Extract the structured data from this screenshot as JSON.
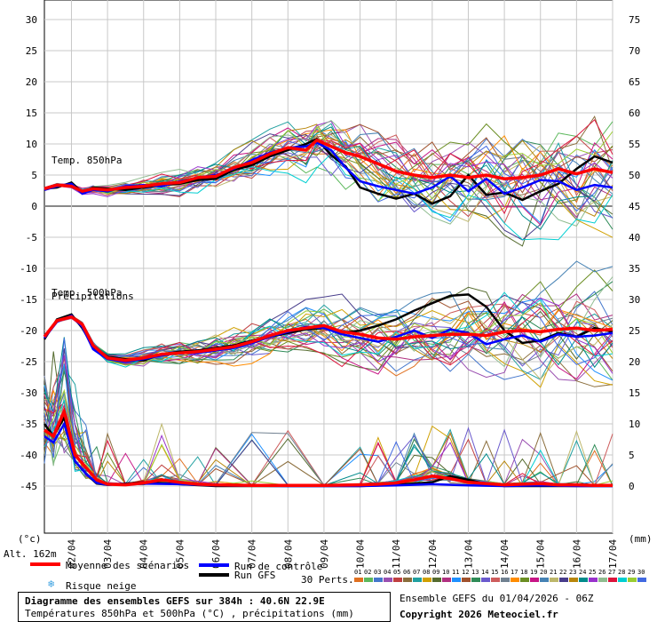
{
  "chart_data": {
    "type": "line",
    "left_axis": {
      "label": "(°c)",
      "ticks": [
        30,
        25,
        20,
        15,
        10,
        5,
        0,
        -5,
        -10,
        -15,
        -20,
        -25,
        -30,
        -35,
        -40,
        -45
      ],
      "range": [
        -45,
        30
      ]
    },
    "right_axis": {
      "label": "(mm)",
      "ticks": [
        75,
        70,
        65,
        60,
        55,
        50,
        45,
        40,
        35,
        30,
        25,
        20,
        15,
        10,
        5,
        0
      ],
      "range": [
        0,
        75
      ]
    },
    "x_ticks": [
      "02/04",
      "03/04",
      "04/04",
      "05/04",
      "06/04",
      "07/04",
      "08/04",
      "09/04",
      "10/04",
      "11/04",
      "12/04",
      "13/04",
      "14/04",
      "15/04",
      "16/04",
      "17/04"
    ],
    "x_range_days": [
      1.25,
      17.0
    ],
    "annotations": [
      "Temp. 850hPa",
      "Temp. 500hPa",
      "Précipitations"
    ],
    "series": [
      {
        "name": "Moyenne des scénarios",
        "color": "#ff0000",
        "t850": [
          [
            1.25,
            2.8
          ],
          [
            1.6,
            3.4
          ],
          [
            2.0,
            3.2
          ],
          [
            2.3,
            2.4
          ],
          [
            2.6,
            2.8
          ],
          [
            3,
            2.6
          ],
          [
            3.5,
            3.0
          ],
          [
            4,
            3.2
          ],
          [
            4.5,
            3.6
          ],
          [
            5,
            3.8
          ],
          [
            5.5,
            4.6
          ],
          [
            6,
            4.8
          ],
          [
            6.5,
            6.2
          ],
          [
            7,
            7.0
          ],
          [
            7.5,
            8.4
          ],
          [
            8,
            9.4
          ],
          [
            8.5,
            9.0
          ],
          [
            8.8,
            10.6
          ],
          [
            9.2,
            9.6
          ],
          [
            9.6,
            8.6
          ],
          [
            10,
            8.0
          ],
          [
            10.5,
            6.8
          ],
          [
            11,
            5.6
          ],
          [
            11.5,
            5.0
          ],
          [
            12,
            4.6
          ],
          [
            12.5,
            5.0
          ],
          [
            13,
            4.6
          ],
          [
            13.5,
            5.0
          ],
          [
            14,
            4.4
          ],
          [
            14.5,
            4.6
          ],
          [
            15,
            5.0
          ],
          [
            15.5,
            6.0
          ],
          [
            16,
            5.2
          ],
          [
            16.5,
            6.0
          ],
          [
            17,
            5.4
          ]
        ],
        "t500": [
          [
            1.25,
            -21.0
          ],
          [
            1.6,
            -18.4
          ],
          [
            2.0,
            -17.8
          ],
          [
            2.3,
            -19.0
          ],
          [
            2.6,
            -22.4
          ],
          [
            3,
            -24.4
          ],
          [
            3.5,
            -24.8
          ],
          [
            4,
            -24.4
          ],
          [
            4.5,
            -23.8
          ],
          [
            5,
            -23.6
          ],
          [
            5.5,
            -23.4
          ],
          [
            6,
            -23.0
          ],
          [
            6.5,
            -22.6
          ],
          [
            7,
            -21.8
          ],
          [
            7.5,
            -20.8
          ],
          [
            8,
            -20.0
          ],
          [
            8.5,
            -19.6
          ],
          [
            9,
            -19.2
          ],
          [
            9.5,
            -20.2
          ],
          [
            10,
            -20.6
          ],
          [
            10.5,
            -21.2
          ],
          [
            11,
            -21.4
          ],
          [
            11.5,
            -21.0
          ],
          [
            12,
            -20.8
          ],
          [
            12.5,
            -20.6
          ],
          [
            13,
            -20.6
          ],
          [
            13.5,
            -20.8
          ],
          [
            14,
            -20.2
          ],
          [
            14.5,
            -20.0
          ],
          [
            15,
            -20.2
          ],
          [
            15.5,
            -19.8
          ],
          [
            16,
            -19.6
          ],
          [
            16.5,
            -20.0
          ],
          [
            17,
            -19.8
          ]
        ],
        "precip": [
          [
            1.25,
            9
          ],
          [
            1.5,
            8
          ],
          [
            1.8,
            12
          ],
          [
            2.1,
            5
          ],
          [
            2.4,
            3
          ],
          [
            2.7,
            1
          ],
          [
            3,
            0.3
          ],
          [
            3.5,
            0.2
          ],
          [
            4,
            0.5
          ],
          [
            4.5,
            1.0
          ],
          [
            5,
            0.6
          ],
          [
            5.5,
            0.3
          ],
          [
            6,
            0.2
          ],
          [
            7,
            0.1
          ],
          [
            8,
            0.1
          ],
          [
            9,
            0.1
          ],
          [
            10,
            0.2
          ],
          [
            10.5,
            0.3
          ],
          [
            11,
            0.5
          ],
          [
            11.5,
            1.0
          ],
          [
            12,
            1.6
          ],
          [
            12.5,
            1.2
          ],
          [
            13,
            0.6
          ],
          [
            13.5,
            0.4
          ],
          [
            14,
            0.2
          ],
          [
            14.5,
            0.3
          ],
          [
            15,
            0.4
          ],
          [
            15.5,
            0.2
          ],
          [
            16,
            0.2
          ],
          [
            16.5,
            0.1
          ],
          [
            17,
            0.1
          ]
        ]
      },
      {
        "name": "Run de contrôle",
        "color": "#0000ff",
        "t850": [
          [
            1.25,
            2.6
          ],
          [
            1.6,
            3.2
          ],
          [
            2.0,
            3.6
          ],
          [
            2.3,
            2.0
          ],
          [
            2.6,
            2.6
          ],
          [
            3,
            2.4
          ],
          [
            3.5,
            3.2
          ],
          [
            4,
            3.4
          ],
          [
            4.5,
            3.2
          ],
          [
            5,
            4.0
          ],
          [
            5.5,
            4.6
          ],
          [
            6,
            5.0
          ],
          [
            6.5,
            6.0
          ],
          [
            7,
            7.4
          ],
          [
            7.5,
            8.6
          ],
          [
            8,
            9.4
          ],
          [
            8.5,
            9.6
          ],
          [
            8.8,
            10.2
          ],
          [
            9.2,
            9.0
          ],
          [
            9.6,
            6.2
          ],
          [
            10,
            4.0
          ],
          [
            10.5,
            3.2
          ],
          [
            11,
            2.6
          ],
          [
            11.5,
            2.0
          ],
          [
            12,
            3.0
          ],
          [
            12.5,
            4.8
          ],
          [
            13,
            2.4
          ],
          [
            13.5,
            4.4
          ],
          [
            14,
            2.0
          ],
          [
            14.5,
            3.0
          ],
          [
            15,
            4.2
          ],
          [
            15.5,
            4.0
          ],
          [
            16,
            2.6
          ],
          [
            16.5,
            3.4
          ],
          [
            17,
            3.0
          ]
        ],
        "t500": [
          [
            1.25,
            -21.2
          ],
          [
            1.6,
            -18.6
          ],
          [
            2.0,
            -17.6
          ],
          [
            2.3,
            -19.4
          ],
          [
            2.6,
            -23.0
          ],
          [
            3,
            -24.6
          ],
          [
            3.5,
            -25.0
          ],
          [
            4,
            -24.6
          ],
          [
            4.5,
            -24.0
          ],
          [
            5,
            -23.6
          ],
          [
            5.5,
            -23.6
          ],
          [
            6,
            -23.2
          ],
          [
            6.5,
            -22.8
          ],
          [
            7,
            -22.0
          ],
          [
            7.5,
            -21.0
          ],
          [
            8,
            -20.2
          ],
          [
            8.5,
            -19.4
          ],
          [
            9,
            -19.6
          ],
          [
            9.5,
            -20.6
          ],
          [
            10,
            -21.2
          ],
          [
            10.5,
            -21.8
          ],
          [
            11,
            -21.0
          ],
          [
            11.5,
            -20.0
          ],
          [
            12,
            -21.2
          ],
          [
            12.5,
            -19.8
          ],
          [
            13,
            -20.4
          ],
          [
            13.5,
            -22.2
          ],
          [
            14,
            -21.4
          ],
          [
            14.5,
            -20.8
          ],
          [
            15,
            -21.8
          ],
          [
            15.5,
            -20.6
          ],
          [
            16,
            -21.0
          ],
          [
            16.5,
            -20.8
          ],
          [
            17,
            -20.4
          ]
        ],
        "precip": [
          [
            1.25,
            8
          ],
          [
            1.5,
            7
          ],
          [
            1.8,
            10
          ],
          [
            2.1,
            4
          ],
          [
            2.4,
            2
          ],
          [
            2.7,
            0.5
          ],
          [
            3,
            0.2
          ],
          [
            4,
            0.4
          ],
          [
            5,
            0.3
          ],
          [
            6,
            0.1
          ],
          [
            8,
            0
          ],
          [
            10,
            0
          ],
          [
            11,
            0.1
          ],
          [
            12,
            0.3
          ],
          [
            13,
            0.1
          ],
          [
            14,
            0
          ],
          [
            15,
            0.1
          ],
          [
            16,
            0
          ],
          [
            17,
            0
          ]
        ]
      },
      {
        "name": "Run GFS",
        "color": "#000000",
        "t850": [
          [
            1.25,
            2.8
          ],
          [
            1.6,
            3.0
          ],
          [
            2.0,
            3.8
          ],
          [
            2.3,
            2.2
          ],
          [
            2.6,
            3.0
          ],
          [
            3,
            2.8
          ],
          [
            3.5,
            2.6
          ],
          [
            4,
            3.0
          ],
          [
            4.5,
            3.4
          ],
          [
            5,
            3.6
          ],
          [
            5.5,
            4.2
          ],
          [
            6,
            4.4
          ],
          [
            6.5,
            5.8
          ],
          [
            7,
            6.6
          ],
          [
            7.5,
            8.0
          ],
          [
            8,
            9.0
          ],
          [
            8.5,
            10.0
          ],
          [
            8.8,
            10.8
          ],
          [
            9.2,
            8.2
          ],
          [
            9.6,
            6.4
          ],
          [
            10,
            3.0
          ],
          [
            10.5,
            2.0
          ],
          [
            11,
            1.2
          ],
          [
            11.5,
            2.0
          ],
          [
            12,
            0.4
          ],
          [
            12.5,
            1.6
          ],
          [
            13,
            5.0
          ],
          [
            13.5,
            1.8
          ],
          [
            14,
            2.2
          ],
          [
            14.5,
            1.0
          ],
          [
            15,
            2.4
          ],
          [
            15.5,
            3.6
          ],
          [
            16,
            6.0
          ],
          [
            16.5,
            8.0
          ],
          [
            17,
            7.0
          ]
        ],
        "t500": [
          [
            1.25,
            -21.4
          ],
          [
            1.6,
            -18.2
          ],
          [
            2.0,
            -17.4
          ],
          [
            2.3,
            -19.6
          ],
          [
            2.6,
            -22.6
          ],
          [
            3,
            -24.2
          ],
          [
            3.5,
            -24.6
          ],
          [
            4,
            -24.8
          ],
          [
            4.5,
            -23.8
          ],
          [
            5,
            -23.4
          ],
          [
            5.5,
            -23.2
          ],
          [
            6,
            -22.8
          ],
          [
            6.5,
            -22.4
          ],
          [
            7,
            -21.6
          ],
          [
            7.5,
            -21.0
          ],
          [
            8,
            -20.4
          ],
          [
            8.5,
            -19.8
          ],
          [
            9,
            -19.6
          ],
          [
            9.5,
            -20.4
          ],
          [
            10,
            -20.0
          ],
          [
            10.5,
            -19.2
          ],
          [
            11,
            -18.2
          ],
          [
            11.5,
            -16.8
          ],
          [
            12,
            -15.6
          ],
          [
            12.5,
            -14.4
          ],
          [
            13,
            -14.2
          ],
          [
            13.5,
            -16.2
          ],
          [
            14,
            -20.0
          ],
          [
            14.5,
            -22.0
          ],
          [
            15,
            -21.6
          ],
          [
            15.5,
            -20.4
          ],
          [
            16,
            -21.0
          ],
          [
            16.5,
            -19.6
          ],
          [
            17,
            -20.2
          ]
        ],
        "precip": [
          [
            1.25,
            10
          ],
          [
            1.5,
            8
          ],
          [
            1.8,
            11
          ],
          [
            2.1,
            4
          ],
          [
            2.4,
            2
          ],
          [
            2.7,
            0.4
          ],
          [
            3,
            0.2
          ],
          [
            4,
            0.6
          ],
          [
            5,
            0.3
          ],
          [
            6,
            0
          ],
          [
            8,
            0
          ],
          [
            10,
            0
          ],
          [
            11,
            0.2
          ],
          [
            12,
            0.6
          ],
          [
            12.5,
            1.6
          ],
          [
            13,
            1.0
          ],
          [
            13.5,
            0.3
          ],
          [
            14,
            0
          ],
          [
            15,
            0
          ],
          [
            16,
            0
          ],
          [
            17,
            0
          ]
        ]
      }
    ],
    "perturbations": [
      "01",
      "02",
      "03",
      "04",
      "05",
      "06",
      "07",
      "08",
      "09",
      "10",
      "11",
      "12",
      "13",
      "14",
      "15",
      "16",
      "17",
      "18",
      "19",
      "20",
      "21",
      "22",
      "23",
      "24",
      "25",
      "26",
      "27",
      "28",
      "29",
      "30"
    ],
    "perturbation_colors": [
      "#e07020",
      "#5cb85c",
      "#4477cc",
      "#9a4fb0",
      "#c04040",
      "#8a6d3b",
      "#20a0a0",
      "#d0a000",
      "#556b2f",
      "#b03080",
      "#1e90ff",
      "#a0522d",
      "#2e8b57",
      "#6a5acd",
      "#cd5c5c",
      "#708090",
      "#ff8c00",
      "#6b8e23",
      "#c71585",
      "#4682b4",
      "#bdb76b",
      "#483d8b",
      "#b8860b",
      "#008b8b",
      "#9932cc",
      "#8fbc8f",
      "#dc143c",
      "#00ced1",
      "#9acd32",
      "#4169e1"
    ]
  },
  "labels": {
    "altitude": "Alt. 162m",
    "unit_left": "(°c)",
    "unit_right": "(mm)",
    "temp850": "Temp. 850hPa",
    "temp500": "Temp. 500hPa",
    "precip": "Précipitations"
  },
  "legend": {
    "mean": "Moyenne des scénarios",
    "control": "Run de contrôle",
    "gfs": "Run GFS",
    "snow": "Risque neige",
    "perts": "30 Perts.",
    "mean_color": "#ff0000",
    "control_color": "#0000ff",
    "gfs_color": "#000000",
    "snow_color": "#3aa0e0"
  },
  "footer": {
    "title": "Diagramme des ensembles GEFS sur 384h : 40.6N 22.9E",
    "subtitle": "Températures 850hPa et 500hPa (°C) , précipitations (mm)",
    "run": "Ensemble GEFS du 01/04/2026 - 06Z",
    "copyright": "Copyright 2026 Meteociel.fr"
  }
}
